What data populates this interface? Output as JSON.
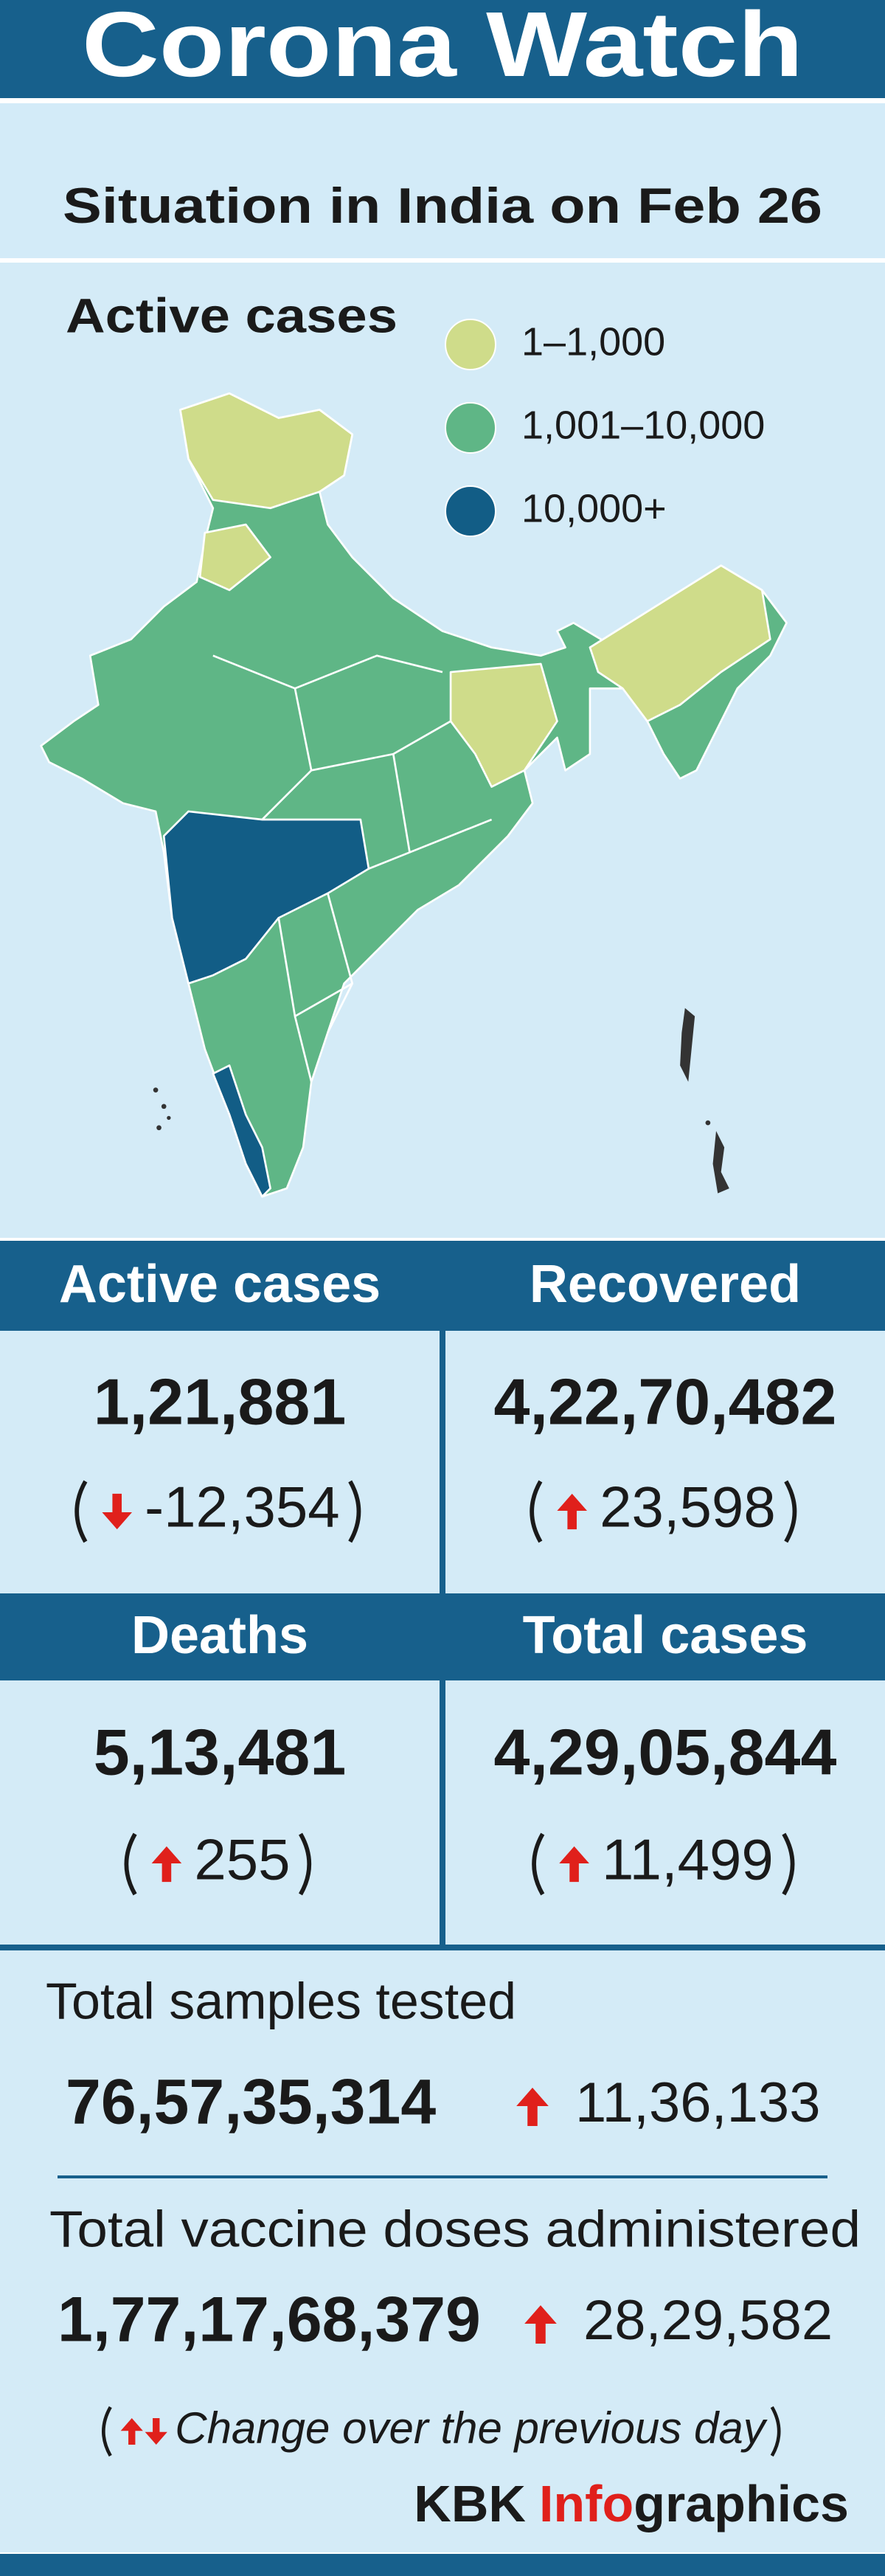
{
  "header": {
    "title": "Corona Watch",
    "subtitle": "Situation in India on Feb 26"
  },
  "map": {
    "title": "Active cases",
    "legend": [
      {
        "label": "1–1,000",
        "color": "#cfdc8a"
      },
      {
        "label": "1,001–10,000",
        "color": "#5fb686"
      },
      {
        "label": "10,000+",
        "color": "#125d86"
      }
    ]
  },
  "stats": [
    {
      "label": "Active cases",
      "value": "1,21,881",
      "change": "-12,354",
      "direction": "down"
    },
    {
      "label": "Recovered",
      "value": "4,22,70,482",
      "change": "23,598",
      "direction": "up"
    },
    {
      "label": "Deaths",
      "value": "5,13,481",
      "change": "255",
      "direction": "up"
    },
    {
      "label": "Total cases",
      "value": "4,29,05,844",
      "change": "11,499",
      "direction": "up"
    }
  ],
  "totals": [
    {
      "label": "Total samples tested",
      "value": "76,57,35,314",
      "change": "11,36,133",
      "direction": "up"
    },
    {
      "label": "Total vaccine doses administered",
      "value": "1,77,17,68,379",
      "change": "28,29,582",
      "direction": "up"
    }
  ],
  "footer": {
    "note": "Change over the previous day",
    "credit": {
      "prefix": "KBK",
      "highlight": "Info",
      "suffix": "graphics"
    }
  }
}
